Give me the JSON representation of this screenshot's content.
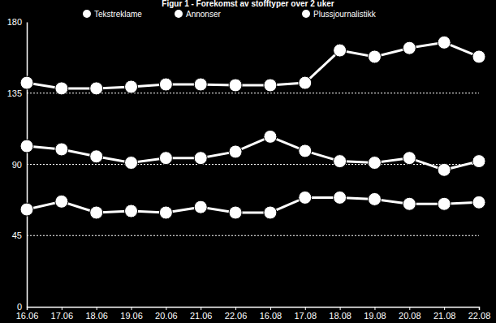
{
  "chart_data": {
    "type": "line",
    "title": "Figur 1 - Forekomst av stofftyper over 2 uker",
    "categories": [
      "16.06",
      "17.06",
      "18.06",
      "19.06",
      "20.06",
      "21.06",
      "22.06",
      "16.08",
      "17.08",
      "18.08",
      "19.08",
      "20.08",
      "21.08",
      "22.08"
    ],
    "series": [
      {
        "name": "Tekstreklame",
        "color": "#ffffff",
        "values": [
          141.5,
          138,
          138,
          139,
          140.5,
          140.5,
          140,
          140,
          141.5,
          162,
          158,
          163.5,
          167,
          158
        ]
      },
      {
        "name": "Annonser",
        "color": "#ffffff",
        "values": [
          101.5,
          99.5,
          95,
          91,
          94,
          94,
          98,
          107.5,
          98.5,
          92,
          91,
          94,
          86.5,
          92
        ]
      },
      {
        "name": "Plussjournalistikk",
        "color": "#ffffff",
        "values": [
          61.5,
          66.5,
          59.5,
          60.5,
          59.5,
          63,
          59.5,
          59.5,
          69,
          69,
          68,
          65,
          65,
          66
        ]
      }
    ],
    "ylim": [
      0,
      180
    ],
    "yticks": [
      0,
      45,
      90,
      135,
      180
    ],
    "grid": true,
    "legend": "top",
    "marker": "circle",
    "line_style": "solid"
  }
}
